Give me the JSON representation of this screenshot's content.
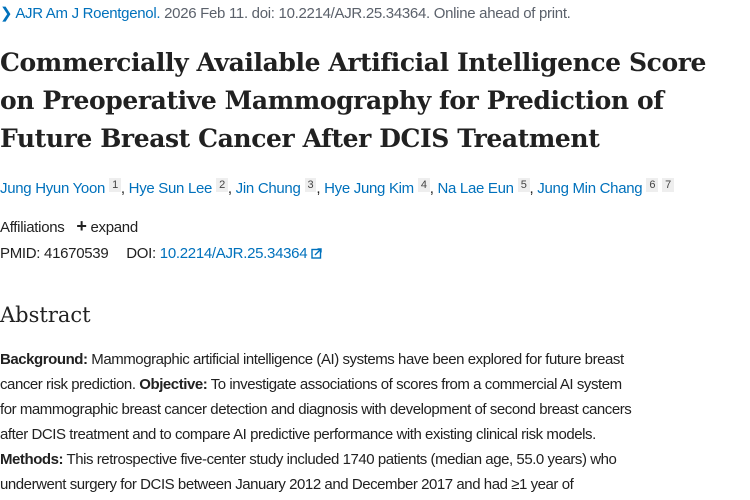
{
  "citation": {
    "chevron_icon": "chevron-right-icon",
    "journal": "AJR Am J Roentgenol.",
    "rest": " 2026 Feb 11. doi: 10.2214/AJR.25.34364. Online ahead of print."
  },
  "title_lines": [
    "Commercially Available Artificial Intelligence Score",
    "on Preoperative Mammography for Prediction of",
    "Future Breast Cancer After DCIS Treatment"
  ],
  "authors": [
    {
      "name": "Jung Hyun Yoon",
      "sups": [
        "1"
      ]
    },
    {
      "name": "Hye Sun Lee",
      "sups": [
        "2"
      ]
    },
    {
      "name": "Jin Chung",
      "sups": [
        "3"
      ]
    },
    {
      "name": "Hye Jung Kim",
      "sups": [
        "4"
      ]
    },
    {
      "name": "Na Lae Eun",
      "sups": [
        "5"
      ]
    },
    {
      "name": "Jung Min Chang",
      "sups": [
        "6",
        "7"
      ]
    }
  ],
  "affiliations": {
    "label": "Affiliations",
    "expand": "expand"
  },
  "ids": {
    "pmid_label": "PMID:",
    "pmid": "41670539",
    "doi_label": "DOI:",
    "doi": "10.2214/AJR.25.34364"
  },
  "abstract": {
    "heading": "Abstract",
    "lines": [
      [
        {
          "b": "Background:"
        },
        {
          "t": " Mammographic artificial intelligence (AI) systems have been explored for future breast"
        }
      ],
      [
        {
          "t": "cancer risk prediction. "
        },
        {
          "b": "Objective:"
        },
        {
          "t": " To investigate associations of scores from a commercial AI system"
        }
      ],
      [
        {
          "t": "for mammographic breast cancer detection and diagnosis with development of second breast cancers"
        }
      ],
      [
        {
          "t": "after DCIS treatment and to compare AI predictive performance with existing clinical risk models."
        }
      ],
      [
        {
          "b": "Methods:"
        },
        {
          "t": " This retrospective five-center study included 1740 patients (median age, 55.0 years) who"
        }
      ],
      [
        {
          "t": "underwent surgery for DCIS between January 2012 and December 2017 and had ≥1 year of"
        }
      ]
    ]
  }
}
